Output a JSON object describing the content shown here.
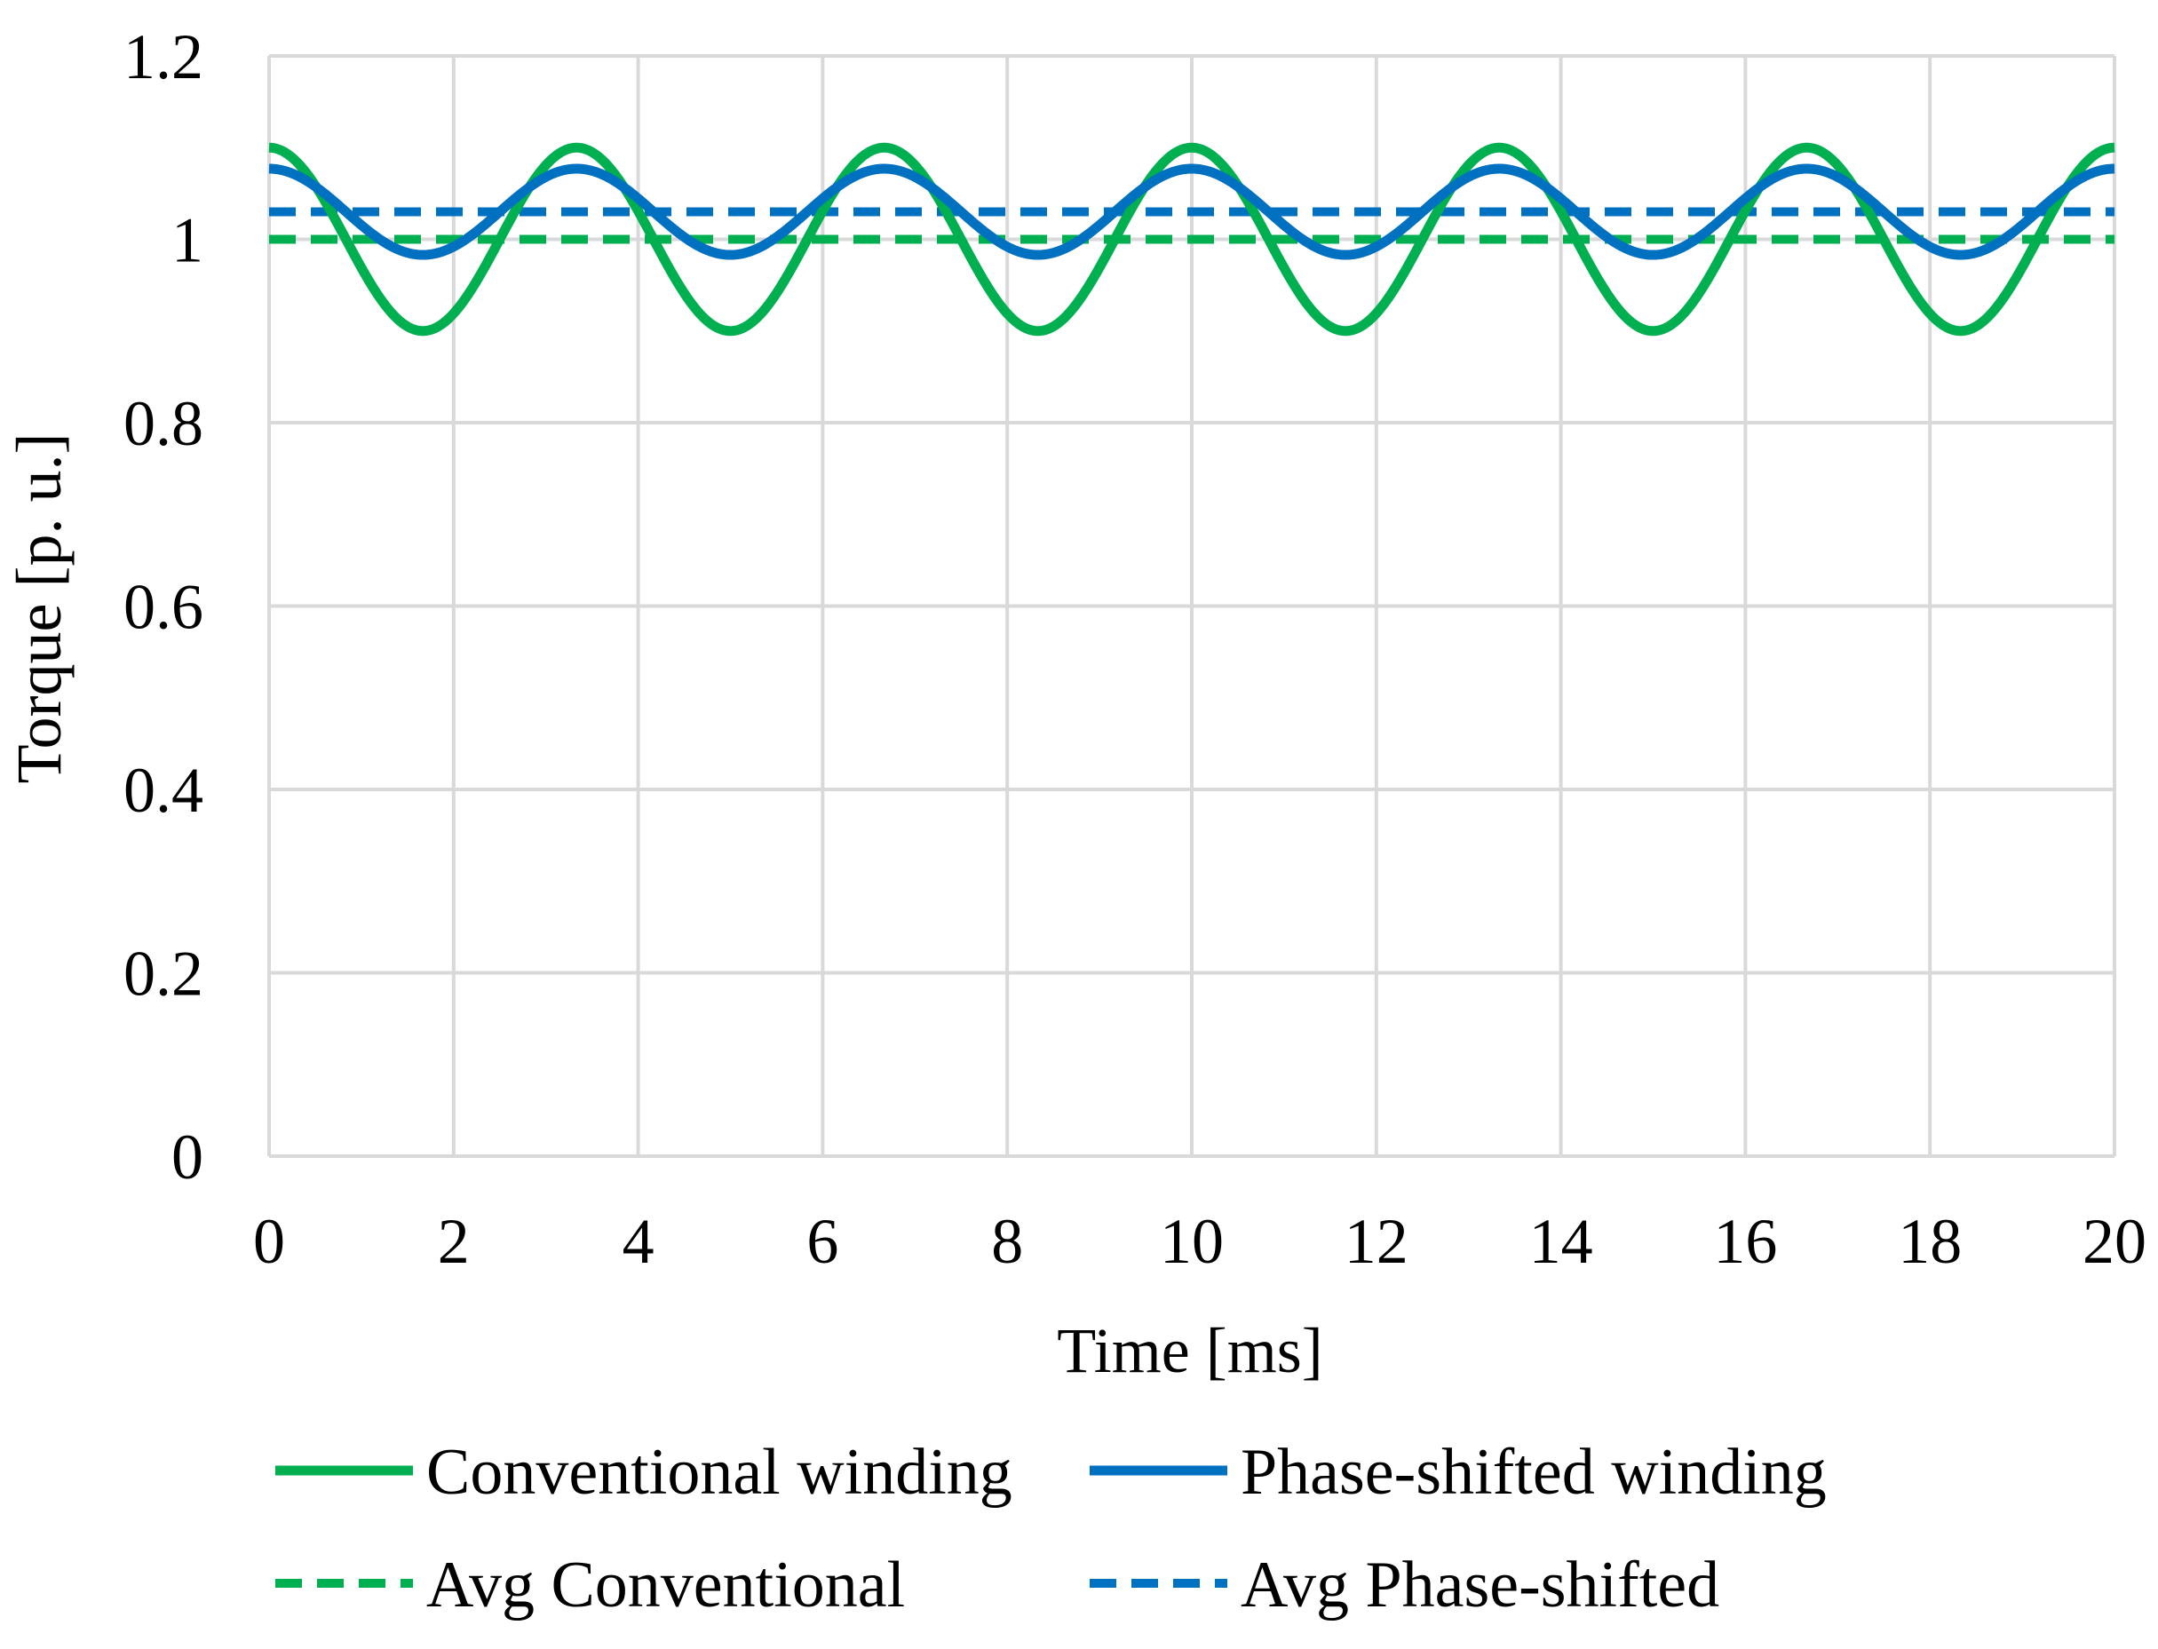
{
  "chart_data": {
    "type": "line",
    "title": "",
    "xlabel": "Time [ms]",
    "ylabel": "Torque [p. u.]",
    "xlim": [
      0,
      20
    ],
    "ylim": [
      0,
      1.2
    ],
    "xticks": [
      0,
      2,
      4,
      6,
      8,
      10,
      12,
      14,
      16,
      18,
      20
    ],
    "yticks": [
      0,
      0.2,
      0.4,
      0.6,
      0.8,
      1,
      1.2
    ],
    "xtick_labels": [
      "0",
      "2",
      "4",
      "6",
      "8",
      "10",
      "12",
      "14",
      "16",
      "18",
      "20"
    ],
    "ytick_labels": [
      "0",
      "0.2",
      "0.4",
      "0.6",
      "0.8",
      "1",
      "1.2"
    ],
    "grid": true,
    "legend_position": "bottom",
    "series": [
      {
        "name": "Conventional winding",
        "style": "solid",
        "color": "#00b050",
        "kind": "sinusoid",
        "mean": 1.0,
        "amplitude": 0.1,
        "period_ms": 3.333,
        "phase": "max at t=0",
        "x": [
          0,
          1.667,
          3.333,
          5,
          6.667,
          8.333,
          10,
          11.667,
          13.333,
          15,
          16.667,
          18.333,
          20
        ],
        "y": [
          1.1,
          0.9,
          1.1,
          0.9,
          1.1,
          0.9,
          1.1,
          0.9,
          1.1,
          0.9,
          1.1,
          0.9,
          1.1
        ]
      },
      {
        "name": "Phase-shifted winding",
        "style": "solid",
        "color": "#0070c0",
        "kind": "sinusoid",
        "mean": 1.03,
        "amplitude": 0.047,
        "period_ms": 3.333,
        "phase": "max at t=0",
        "x": [
          0,
          1.667,
          3.333,
          5,
          6.667,
          8.333,
          10,
          11.667,
          13.333,
          15,
          16.667,
          18.333,
          20
        ],
        "y": [
          1.077,
          0.983,
          1.077,
          0.983,
          1.077,
          0.983,
          1.077,
          0.983,
          1.077,
          0.983,
          1.077,
          0.983,
          1.077
        ]
      },
      {
        "name": "Avg Conventional",
        "style": "dashed",
        "color": "#00b050",
        "kind": "constant",
        "x": [
          0,
          20
        ],
        "y": [
          1.0,
          1.0
        ]
      },
      {
        "name": "Avg Phase-shifted",
        "style": "dashed",
        "color": "#0070c0",
        "kind": "constant",
        "x": [
          0,
          20
        ],
        "y": [
          1.03,
          1.03
        ]
      }
    ]
  }
}
